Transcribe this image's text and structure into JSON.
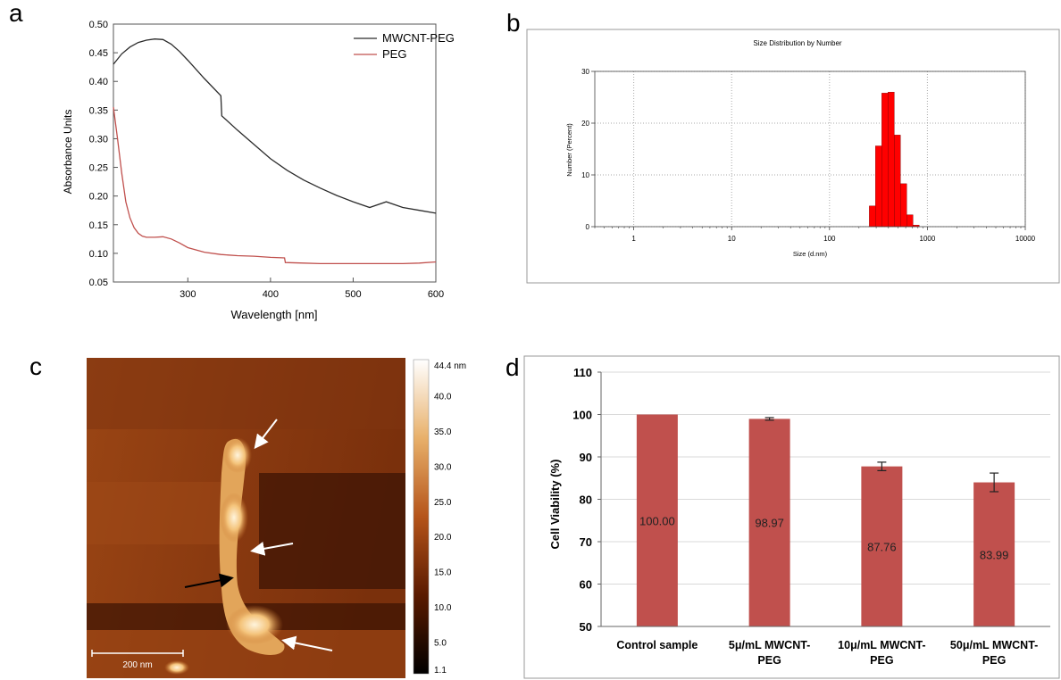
{
  "panels": {
    "a": "a",
    "b": "b",
    "c": "c",
    "d": "d"
  },
  "chart_data": [
    {
      "panel": "a",
      "type": "line",
      "xlabel": "Wavelength [nm]",
      "ylabel": "Absorbance Units",
      "xlim": [
        210,
        600
      ],
      "ylim": [
        0.05,
        0.5
      ],
      "xticks": [
        300,
        400,
        500,
        600
      ],
      "yticks": [
        0.05,
        0.1,
        0.15,
        0.2,
        0.25,
        0.3,
        0.35,
        0.4,
        0.45,
        0.5
      ],
      "legend_position": "top-right",
      "series": [
        {
          "name": "MWCNT-PEG",
          "color": "#2b2b2b",
          "x": [
            210,
            220,
            230,
            240,
            250,
            260,
            270,
            280,
            290,
            300,
            320,
            340,
            341,
            360,
            380,
            400,
            420,
            440,
            460,
            480,
            500,
            520,
            540,
            560,
            580,
            600
          ],
          "y": [
            0.43,
            0.448,
            0.46,
            0.468,
            0.472,
            0.474,
            0.473,
            0.465,
            0.452,
            0.437,
            0.405,
            0.375,
            0.34,
            0.315,
            0.29,
            0.265,
            0.245,
            0.228,
            0.214,
            0.201,
            0.19,
            0.18,
            0.19,
            0.18,
            0.175,
            0.17
          ]
        },
        {
          "name": "PEG",
          "color": "#c0504d",
          "x": [
            210,
            215,
            220,
            225,
            230,
            235,
            240,
            245,
            250,
            260,
            270,
            280,
            290,
            300,
            320,
            340,
            360,
            380,
            400,
            417,
            418,
            440,
            460,
            480,
            500,
            520,
            540,
            560,
            580,
            600
          ],
          "y": [
            0.355,
            0.3,
            0.24,
            0.19,
            0.162,
            0.145,
            0.135,
            0.13,
            0.128,
            0.128,
            0.129,
            0.125,
            0.118,
            0.11,
            0.102,
            0.098,
            0.096,
            0.095,
            0.093,
            0.092,
            0.084,
            0.083,
            0.082,
            0.082,
            0.082,
            0.082,
            0.082,
            0.082,
            0.083,
            0.085
          ]
        }
      ]
    },
    {
      "panel": "b",
      "type": "bar",
      "title": "Size Distribution by Number",
      "xlabel": "Size (d.nm)",
      "ylabel": "Number (Percent)",
      "xscale": "log",
      "xlim": [
        0.4,
        10000
      ],
      "ylim": [
        0,
        30
      ],
      "xticks": [
        1,
        10,
        100,
        1000,
        10000
      ],
      "yticks": [
        0,
        10,
        20,
        30
      ],
      "grid": true,
      "bar_color": "#ff0000",
      "bars": [
        {
          "x": [
            255,
            295
          ],
          "y": 4.0
        },
        {
          "x": [
            295,
            342
          ],
          "y": 15.6
        },
        {
          "x": [
            342,
            396
          ],
          "y": 25.8
        },
        {
          "x": [
            396,
            459
          ],
          "y": 26.0
        },
        {
          "x": [
            459,
            531
          ],
          "y": 17.7
        },
        {
          "x": [
            531,
            615
          ],
          "y": 8.3
        },
        {
          "x": [
            615,
            712
          ],
          "y": 2.3
        },
        {
          "x": [
            712,
            825
          ],
          "y": 0.3
        }
      ]
    },
    {
      "panel": "c",
      "type": "heatmap",
      "colorbar_ticks": [
        "44.4 nm",
        "40.0",
        "35.0",
        "30.0",
        "25.0",
        "20.0",
        "15.0",
        "10.0",
        "5.0",
        "1.1"
      ],
      "scale_bar": "200 nm"
    },
    {
      "panel": "d",
      "type": "bar",
      "ylabel": "Cell Viability (%)",
      "ylim": [
        50,
        110
      ],
      "yticks": [
        50,
        60,
        70,
        80,
        90,
        100,
        110
      ],
      "bar_color": "#c0504d",
      "categories": [
        "Control sample",
        "5μ/mL MWCNT-PEG",
        "10μ/mL MWCNT-PEG",
        "50μ/mL MWCNT-PEG"
      ],
      "category_lines": [
        [
          "Control sample",
          ""
        ],
        [
          "5μ/mL MWCNT-",
          "PEG"
        ],
        [
          "10μ/mL MWCNT-",
          "PEG"
        ],
        [
          "50μ/mL MWCNT-",
          "PEG"
        ]
      ],
      "values": [
        100.0,
        98.97,
        87.76,
        83.99
      ],
      "value_labels": [
        "100.00",
        "98.97",
        "87.76",
        "83.99"
      ],
      "errors": [
        0,
        0.3,
        1.0,
        2.2
      ]
    }
  ]
}
